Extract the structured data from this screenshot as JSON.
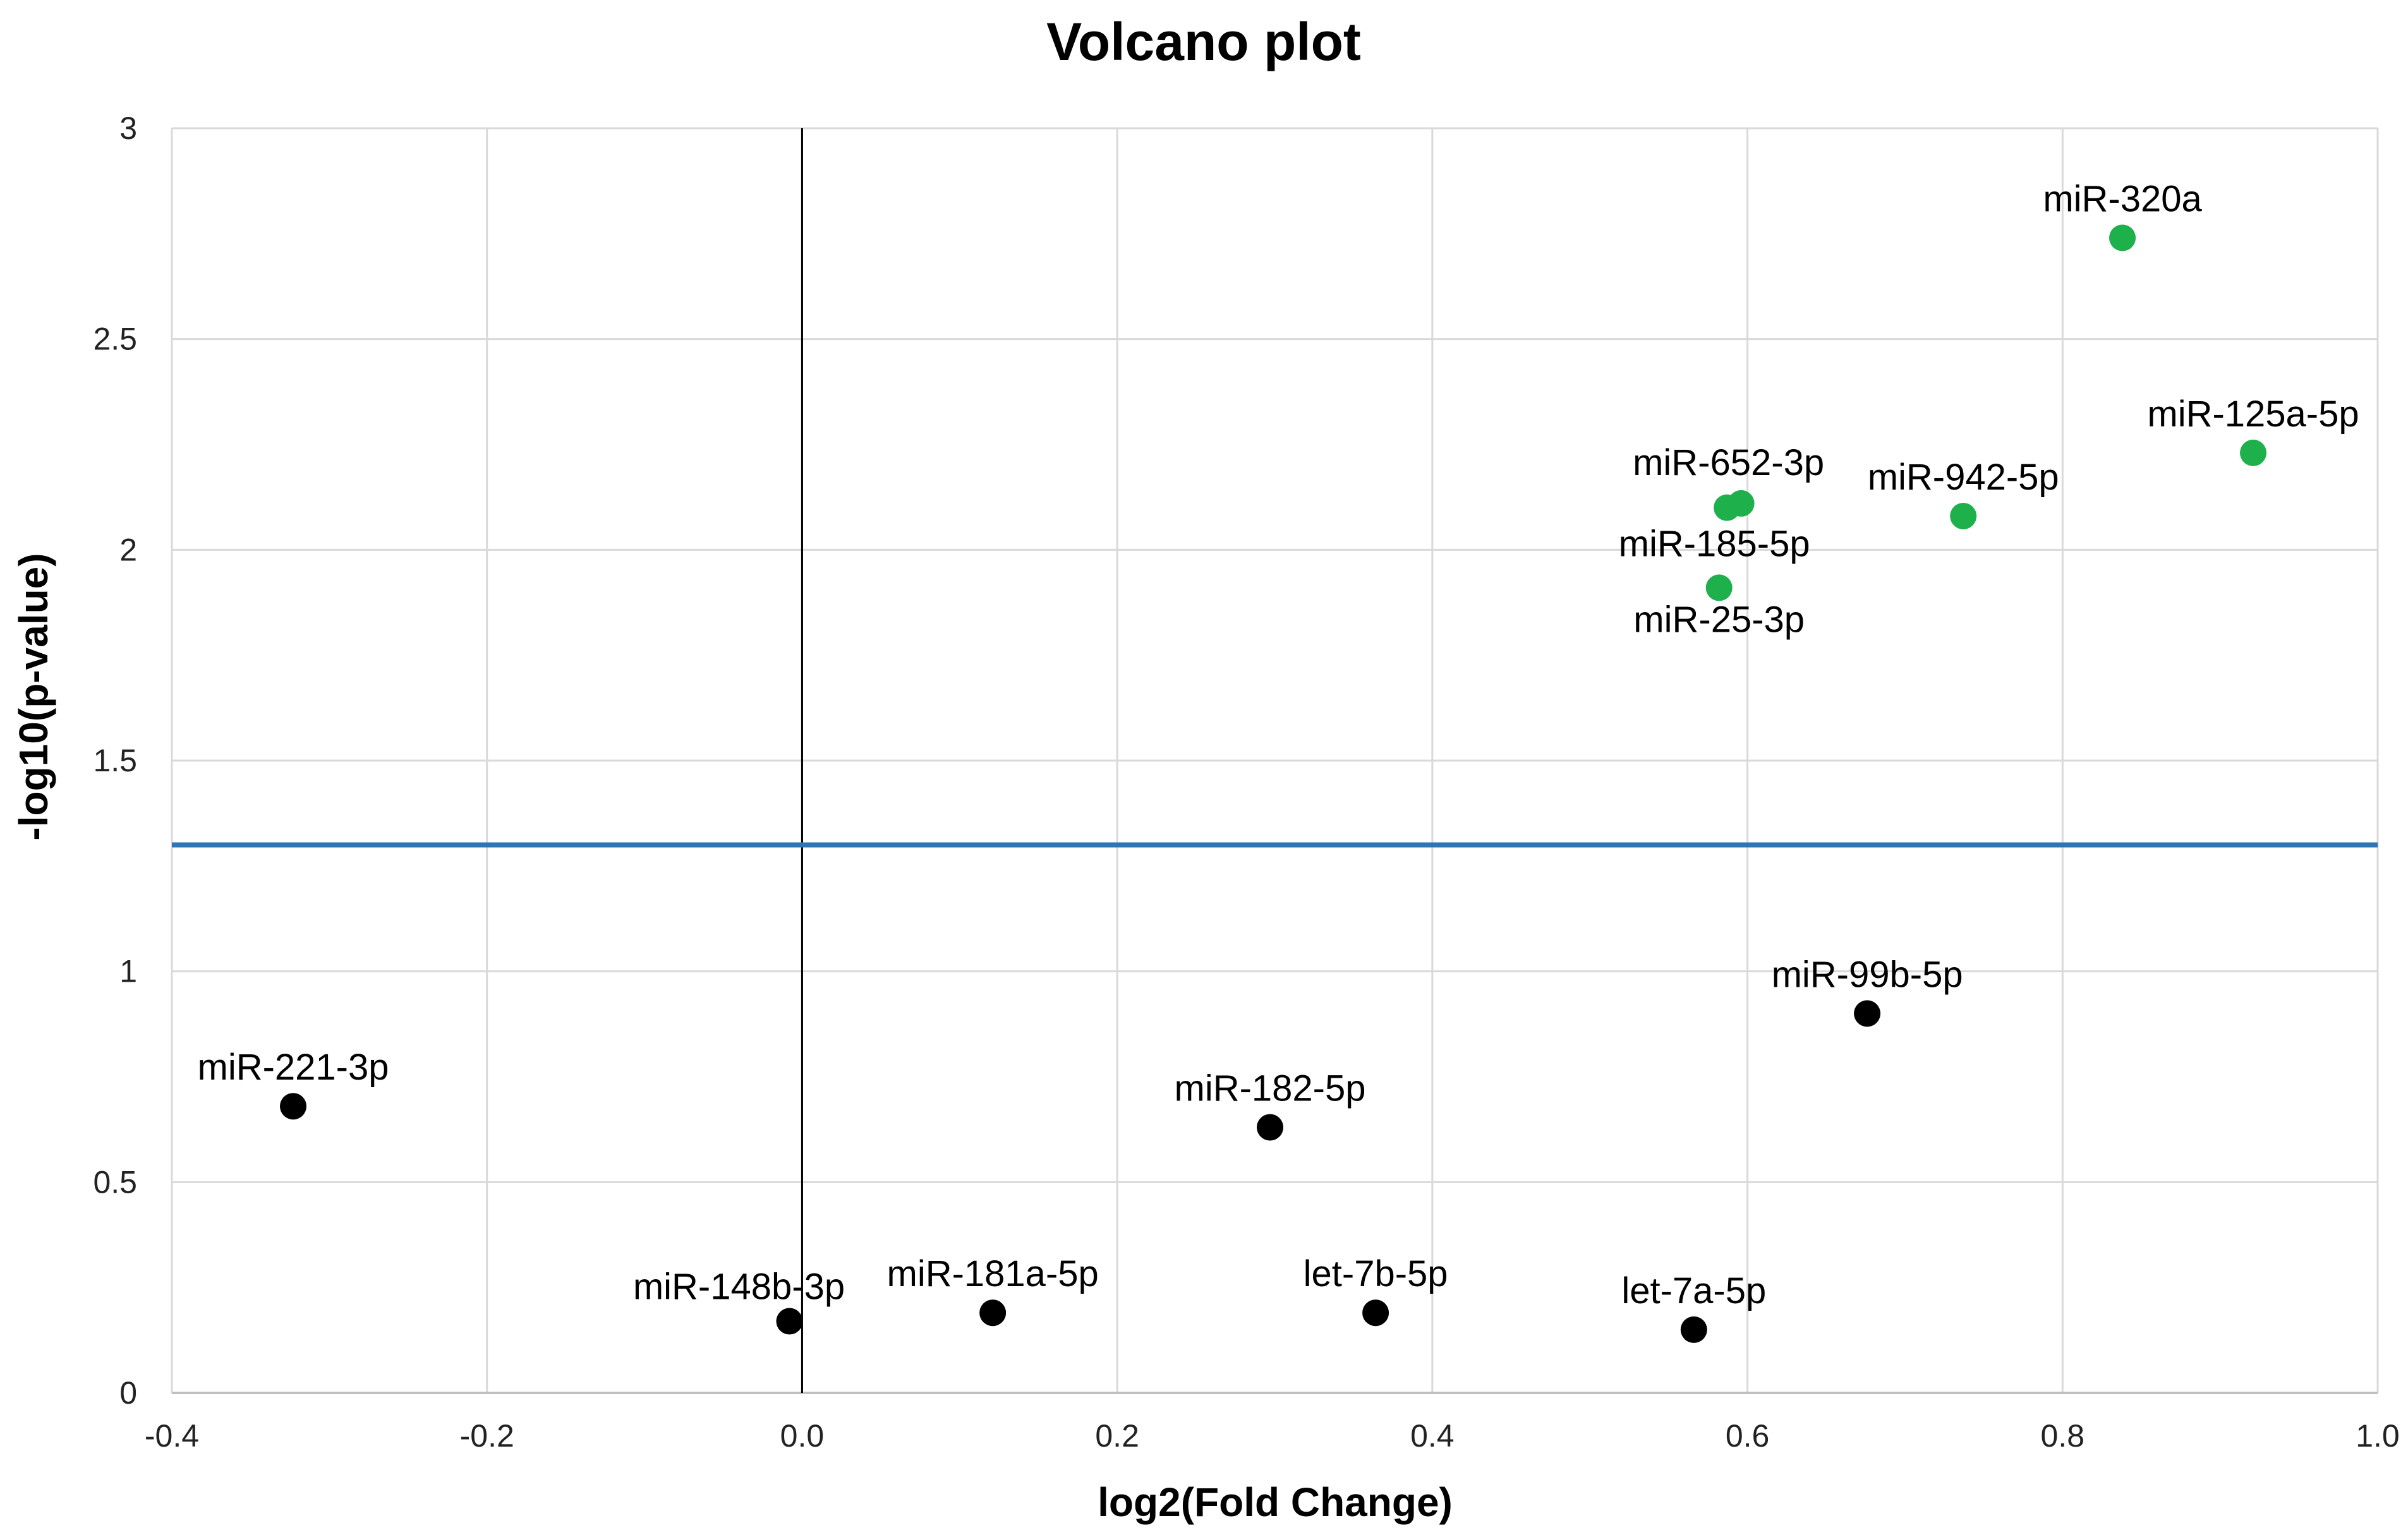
{
  "chart_data": {
    "type": "scatter",
    "title": "Volcano plot",
    "xlabel": "log2(Fold Change)",
    "ylabel": "-log10(p-value)",
    "xlim": [
      -0.4,
      1.0
    ],
    "ylim": [
      0,
      3
    ],
    "xticks": [
      -0.4,
      -0.2,
      0.0,
      0.2,
      0.4,
      0.6,
      0.8,
      1.0
    ],
    "xtick_labels": [
      "-0.4",
      "-0.2",
      "0.0",
      "0.2",
      "0.4",
      "0.6",
      "0.8",
      "1.0"
    ],
    "yticks": [
      0,
      0.5,
      1,
      1.5,
      2,
      2.5,
      3
    ],
    "ytick_labels": [
      "0",
      "0.5",
      "1",
      "1.5",
      "2",
      "2.5",
      "3"
    ],
    "grid": true,
    "significance_threshold": 1.3,
    "vertical_reference": 0.0,
    "colors": {
      "significant": "#1db04b",
      "not_significant": "#000000",
      "threshold_line": "#2e75b6",
      "zero_line": "#000000"
    },
    "points": [
      {
        "label": "miR-320a",
        "x": 0.838,
        "y": 2.74,
        "significant": true,
        "label_pos": "above"
      },
      {
        "label": "miR-125a-5p",
        "x": 0.921,
        "y": 2.23,
        "significant": true,
        "label_pos": "above"
      },
      {
        "label": "miR-942-5p",
        "x": 0.737,
        "y": 2.08,
        "significant": true,
        "label_pos": "above"
      },
      {
        "label": "miR-652-3p",
        "x": 0.596,
        "y": 2.11,
        "significant": true,
        "label_pos": "above"
      },
      {
        "label": "miR-185-5p",
        "x": 0.587,
        "y": 2.1,
        "significant": true,
        "label_pos": "below"
      },
      {
        "label": "miR-25-3p",
        "x": 0.582,
        "y": 1.91,
        "significant": true,
        "label_pos": "below-far"
      },
      {
        "label": "miR-99b-5p",
        "x": 0.676,
        "y": 0.9,
        "significant": false,
        "label_pos": "above"
      },
      {
        "label": "miR-221-3p",
        "x": -0.323,
        "y": 0.68,
        "significant": false,
        "label_pos": "above"
      },
      {
        "label": "miR-182-5p",
        "x": 0.297,
        "y": 0.63,
        "significant": false,
        "label_pos": "above"
      },
      {
        "label": "miR-148b-3p",
        "x": -0.008,
        "y": 0.17,
        "significant": false,
        "label_pos": "above-left"
      },
      {
        "label": "miR-181a-5p",
        "x": 0.121,
        "y": 0.19,
        "significant": false,
        "label_pos": "above"
      },
      {
        "label": "let-7b-5p",
        "x": 0.364,
        "y": 0.19,
        "significant": false,
        "label_pos": "above"
      },
      {
        "label": "let-7a-5p",
        "x": 0.566,
        "y": 0.15,
        "significant": false,
        "label_pos": "above"
      }
    ]
  }
}
